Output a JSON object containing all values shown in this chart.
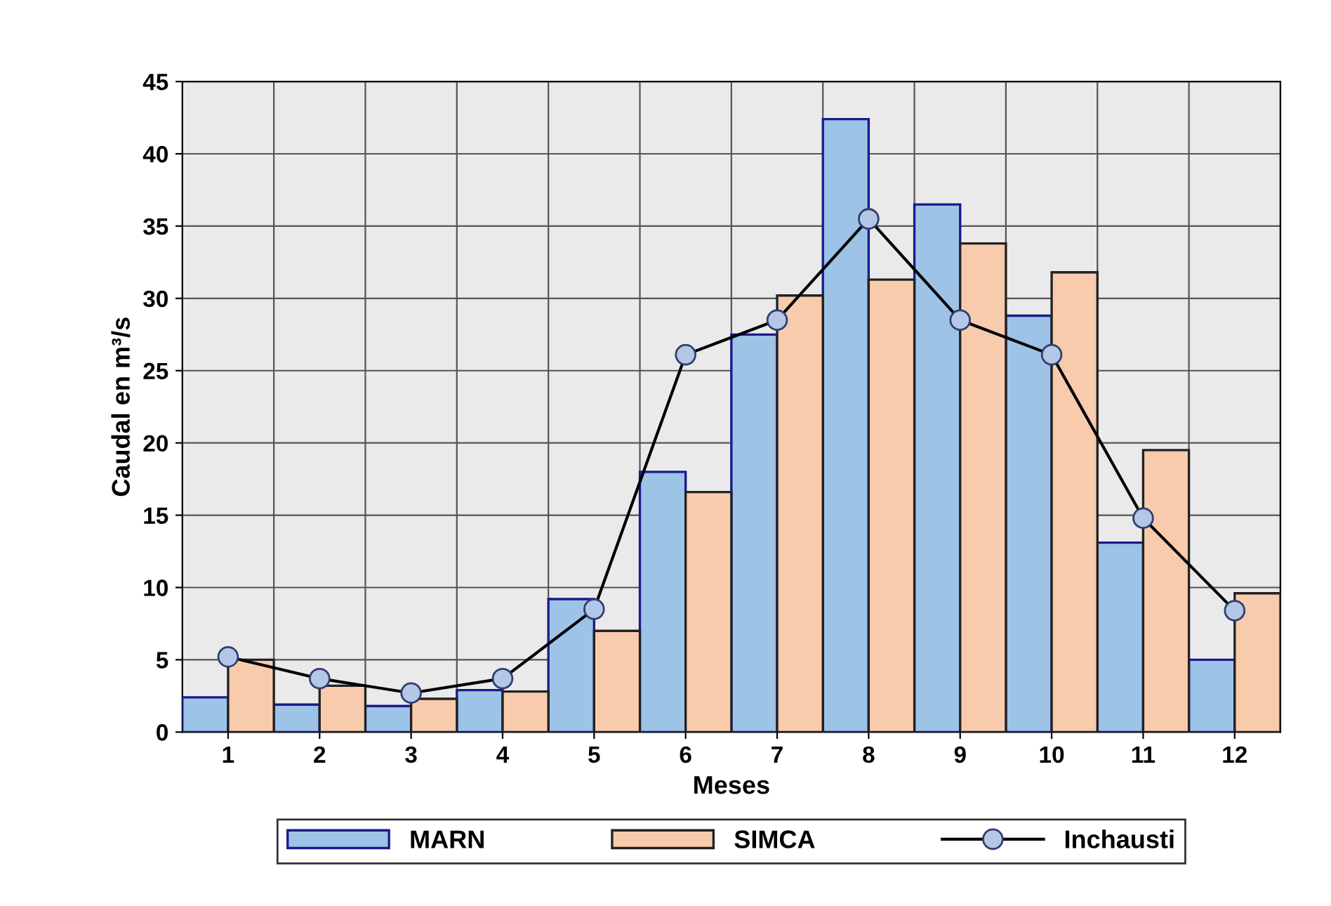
{
  "chart_data": {
    "type": "bar",
    "xlabel": "Meses",
    "ylabel": "Caudal en m³/s",
    "categories": [
      "1",
      "2",
      "3",
      "4",
      "5",
      "6",
      "7",
      "8",
      "9",
      "10",
      "11",
      "12"
    ],
    "series": [
      {
        "name": "MARN",
        "color": "#9dc3e6",
        "values": [
          2.4,
          1.9,
          1.8,
          2.9,
          9.2,
          18.0,
          27.5,
          42.4,
          36.5,
          28.8,
          13.1,
          5.0
        ]
      },
      {
        "name": "SIMCA",
        "color": "#f8cbad",
        "values": [
          5.0,
          3.2,
          2.3,
          2.8,
          7.0,
          16.6,
          30.2,
          31.3,
          33.8,
          31.8,
          19.5,
          9.6
        ]
      },
      {
        "name": "Inchausti",
        "type": "line",
        "color": "#000000",
        "marker": "circle",
        "values": [
          5.2,
          3.7,
          2.7,
          3.7,
          8.5,
          26.1,
          28.5,
          35.5,
          28.5,
          26.1,
          14.8,
          8.4
        ]
      }
    ],
    "ylim": [
      0,
      45
    ],
    "yticks": [
      0,
      5,
      10,
      15,
      20,
      25,
      30,
      35,
      40,
      45
    ],
    "grid": true,
    "legend": "bottom"
  }
}
